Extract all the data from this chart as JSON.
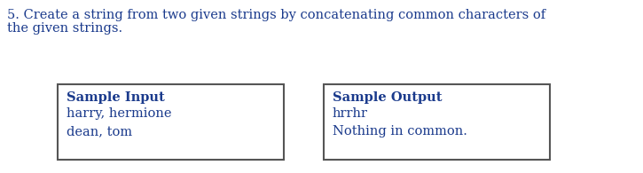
{
  "title_line1": "5. Create a string from two given strings by concatenating common characters of",
  "title_line2": "the given strings.",
  "box1_header": "Sample Input",
  "box1_line1": "harry, hermione",
  "box1_line2": "dean, tom",
  "box2_header": "Sample Output",
  "box2_line1": "hrrhr",
  "box2_line2": "Nothing in common.",
  "bg_color": "#ffffff",
  "text_color": "#1a3a8c",
  "box_edge_color": "#555555",
  "font_size_title": 10.5,
  "font_size_box": 10.5
}
